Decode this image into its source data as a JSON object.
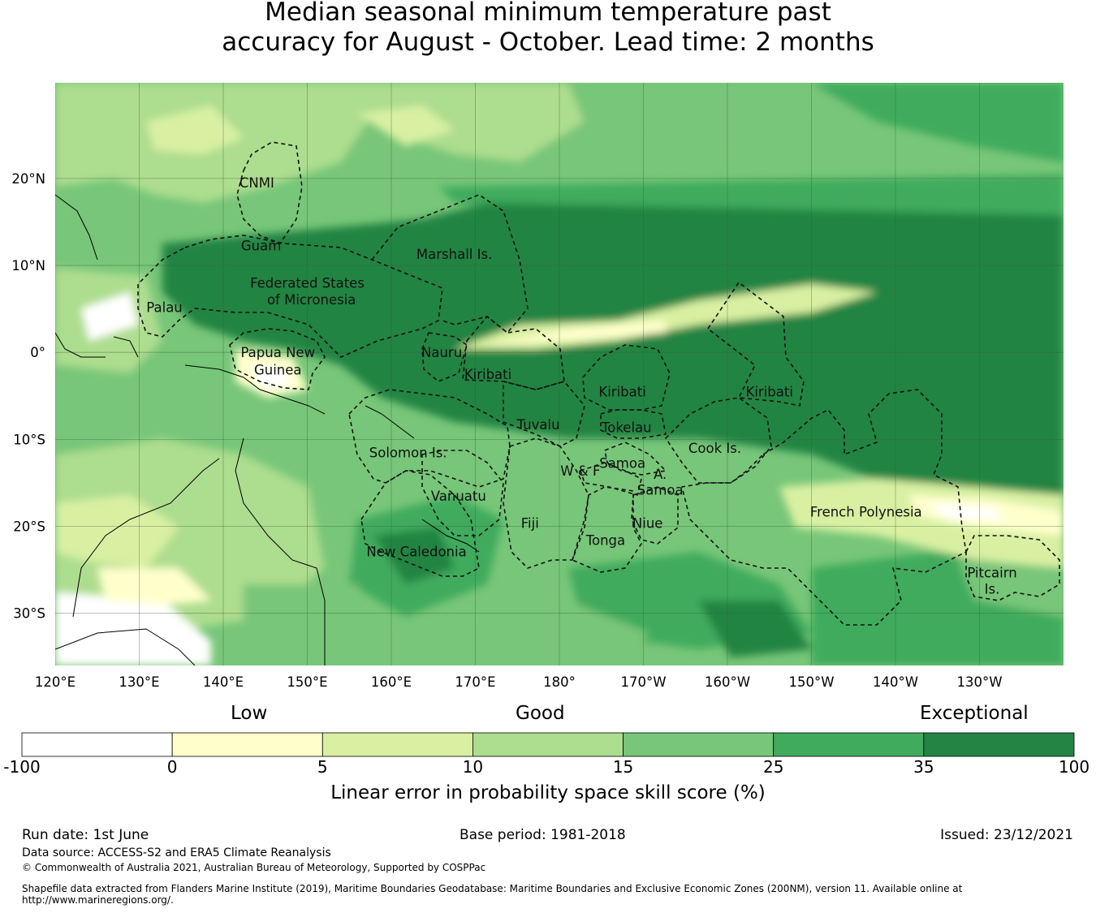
{
  "title": {
    "line1": "Median seasonal minimum temperature past",
    "line2": "accuracy for August - October. Lead time: 2 months"
  },
  "map": {
    "lon_range": [
      120,
      240
    ],
    "lat_range": [
      -36,
      31
    ],
    "lon_ticks": [
      "120°E",
      "130°E",
      "140°E",
      "150°E",
      "160°E",
      "170°E",
      "180°",
      "170°W",
      "160°W",
      "150°W",
      "140°W",
      "130°W"
    ],
    "lat_ticks": [
      "20°N",
      "10°N",
      "0°",
      "10°S",
      "20°S",
      "30°S"
    ],
    "gridlines": true,
    "regions": [
      {
        "name": "CNMI",
        "lon": 144,
        "lat": 19.5
      },
      {
        "name": "Guam",
        "lon": 144.5,
        "lat": 12.3
      },
      {
        "name": "Marshall Is.",
        "lon": 167.5,
        "lat": 11.3
      },
      {
        "name": "Federated States",
        "lon": 150,
        "lat": 8
      },
      {
        "name": "of Micronesia",
        "lon": 150.5,
        "lat": 6.1
      },
      {
        "name": "Palau",
        "lon": 133,
        "lat": 5.2
      },
      {
        "name": "Papua New",
        "lon": 146.5,
        "lat": 0
      },
      {
        "name": "Guinea",
        "lon": 146.5,
        "lat": -2
      },
      {
        "name": "Nauru",
        "lon": 166,
        "lat": 0
      },
      {
        "name": "Kiribati",
        "lon": 171.5,
        "lat": -2.5
      },
      {
        "name": "Kiribati",
        "lon": 187.5,
        "lat": -4.5
      },
      {
        "name": "Kiribati",
        "lon": 205,
        "lat": -4.5
      },
      {
        "name": "Tuvalu",
        "lon": 177.5,
        "lat": -8.3
      },
      {
        "name": "Tokelau",
        "lon": 188,
        "lat": -8.6
      },
      {
        "name": "Solomon Is.",
        "lon": 162,
        "lat": -11.5
      },
      {
        "name": "Cook Is.",
        "lon": 198.5,
        "lat": -11
      },
      {
        "name": "Samoa",
        "lon": 187.5,
        "lat": -12.7
      },
      {
        "name": "W & F",
        "lon": 182.5,
        "lat": -13.6
      },
      {
        "name": "A.",
        "lon": 192,
        "lat": -14
      },
      {
        "name": "Samoa",
        "lon": 192,
        "lat": -15.8
      },
      {
        "name": "Vanuatu",
        "lon": 168,
        "lat": -16.5
      },
      {
        "name": "Fiji",
        "lon": 176.5,
        "lat": -19.6
      },
      {
        "name": "Niue",
        "lon": 190.5,
        "lat": -19.6
      },
      {
        "name": "Tonga",
        "lon": 185.5,
        "lat": -21.6
      },
      {
        "name": "New Caledonia",
        "lon": 163,
        "lat": -22.9
      },
      {
        "name": "French Polynesia",
        "lon": 216.5,
        "lat": -18.3
      },
      {
        "name": "Pitcairn",
        "lon": 231.5,
        "lat": -25.3
      },
      {
        "name": "Is.",
        "lon": 231.5,
        "lat": -27.2
      }
    ]
  },
  "legend": {
    "category_low": "Low",
    "category_good": "Good",
    "category_exceptional": "Exceptional",
    "bins": [
      {
        "from": "-100",
        "to": "0",
        "color": "#ffffff"
      },
      {
        "from": "0",
        "to": "5",
        "color": "#ffffcc"
      },
      {
        "from": "5",
        "to": "10",
        "color": "#d9f0a3"
      },
      {
        "from": "10",
        "to": "15",
        "color": "#addd8e"
      },
      {
        "from": "15",
        "to": "25",
        "color": "#78c679"
      },
      {
        "from": "25",
        "to": "35",
        "color": "#41ab5d"
      },
      {
        "from": "35",
        "to": "100",
        "color": "#238443"
      }
    ],
    "ticks": [
      "-100",
      "0",
      "5",
      "10",
      "15",
      "25",
      "35",
      "100"
    ],
    "title": "Linear error in probability space skill score (%)"
  },
  "footer": {
    "run_date": "Run date: 1st June",
    "base_period": "Base period: 1981-2018",
    "issued": "Issued: 23/12/2021",
    "data_source": "Data source: ACCESS-S2 and ERA5 Climate Reanalysis",
    "copyright": "© Commonwealth of Australia 2021, Australian Bureau of Meteorology, Supported by COSPPac",
    "shapefile_line1": "Shapefile data extracted from Flanders Marine Institute (2019), Maritime Boundaries Geodatabase: Maritime Boundaries and Exclusive Economic Zones (200NM), version 11. Available online at",
    "shapefile_line2": "http://www.marineregions.org/."
  }
}
